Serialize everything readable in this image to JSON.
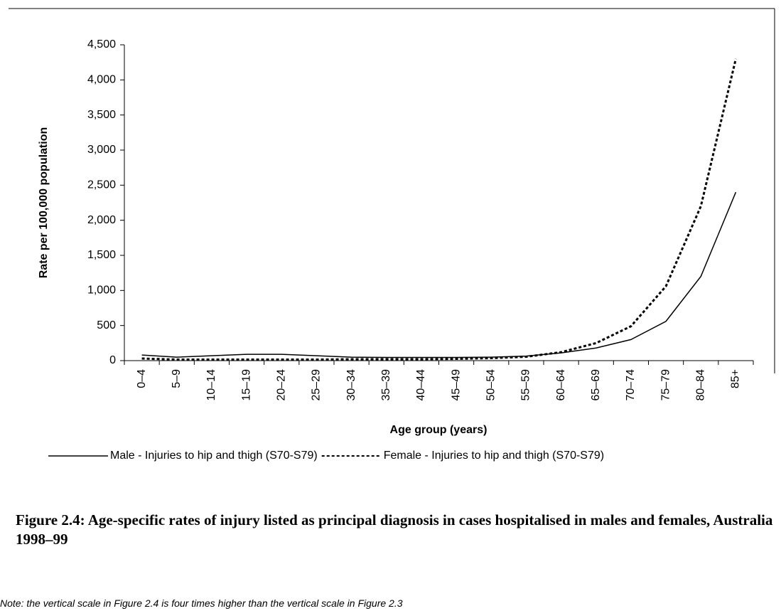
{
  "chart_data": {
    "type": "line",
    "x_label": "Age group (years)",
    "y_label": "Rate per 100,000 population",
    "categories": [
      "0–4",
      "5–9",
      "10–14",
      "15–19",
      "20–24",
      "25–29",
      "30–34",
      "35–39",
      "40–44",
      "45–49",
      "50–54",
      "55–59",
      "60–64",
      "65–69",
      "70–74",
      "75–79",
      "80–84",
      "85+"
    ],
    "series": [
      {
        "name": "Male - Injuries to hip and thigh (S70-S79)",
        "color": "#000000",
        "dash": false,
        "values": [
          80,
          50,
          70,
          90,
          90,
          70,
          50,
          45,
          45,
          45,
          50,
          65,
          110,
          180,
          300,
          560,
          1200,
          2400
        ]
      },
      {
        "name": "Female - Injuries to hip and thigh (S70-S79)",
        "color": "#000000",
        "dash": true,
        "values": [
          30,
          15,
          15,
          15,
          15,
          15,
          20,
          20,
          20,
          25,
          35,
          55,
          120,
          250,
          490,
          1060,
          2200,
          4300
        ]
      }
    ],
    "ylim": [
      0,
      4500
    ],
    "yticks": [
      0,
      500,
      {
        "value": 1000,
        "label": "1,000"
      },
      {
        "value": 1500,
        "label": "1,500"
      },
      {
        "value": 2000,
        "label": "2,000"
      },
      {
        "value": 2500,
        "label": "2,500"
      },
      {
        "value": 3000,
        "label": "3,000"
      },
      {
        "value": 3500,
        "label": "3,500"
      },
      {
        "value": 4000,
        "label": "4,000"
      },
      {
        "value": 4500,
        "label": "4,500"
      }
    ],
    "grid": false,
    "legend": "bottom"
  },
  "caption": "Figure 2.4: Age-specific rates of injury listed as principal diagnosis in cases hospitalised in males and females, Australia 1998–99",
  "note": "Note: the vertical scale in Figure 2.4 is four times higher than the vertical scale in Figure 2.3"
}
